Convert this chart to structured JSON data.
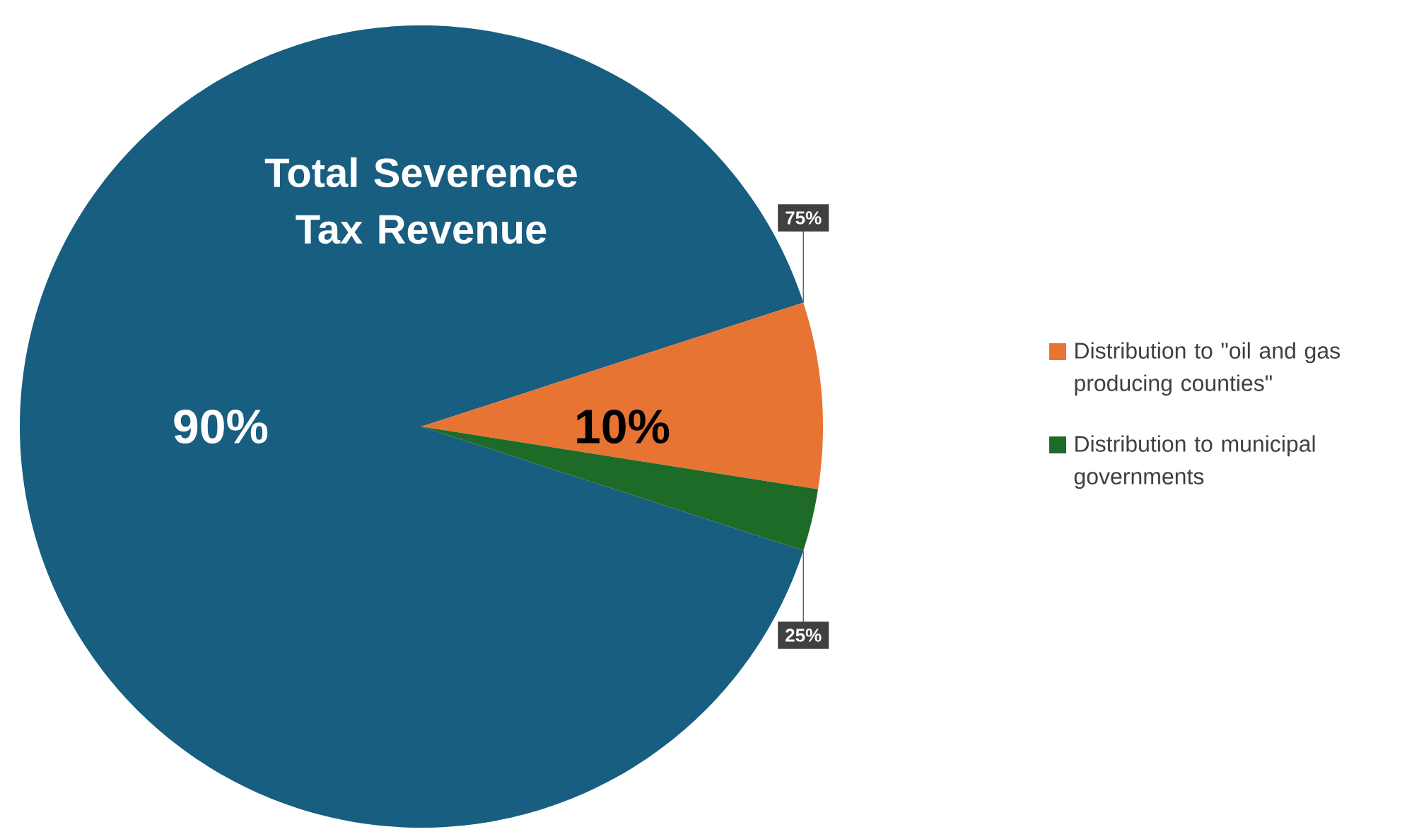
{
  "chart_data": {
    "type": "pie",
    "categories": [
      null,
      "Distribution to \"oil and gas producing counties\"",
      "Distribution to municipal governments"
    ],
    "values": [
      90,
      7.5,
      2.5
    ],
    "colors": [
      "#175e80",
      "#e87434",
      "#1e6b27"
    ],
    "value_labels": [
      "90%",
      null,
      null
    ],
    "annotations": [
      "Total Severence Tax Revenue",
      "10%",
      "75%",
      "25%"
    ],
    "legend": "right"
  }
}
